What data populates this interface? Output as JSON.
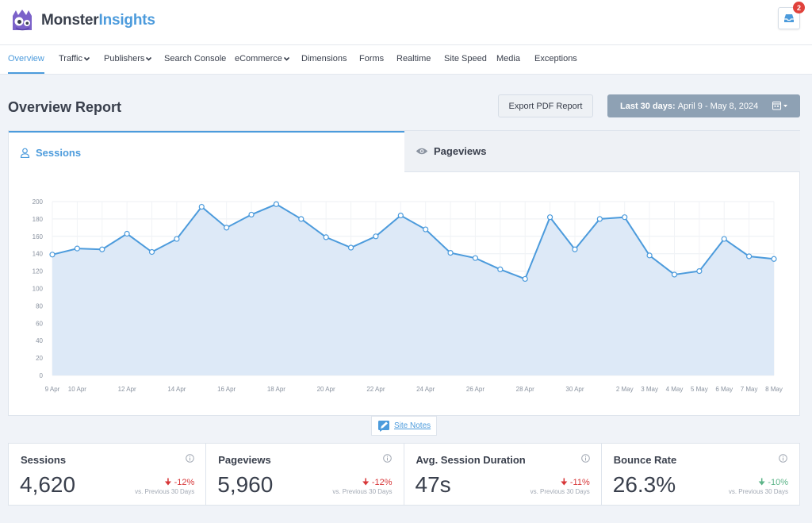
{
  "brand": {
    "name_part1": "Monster",
    "name_part2": "Insights",
    "accent": "#4c9bdc"
  },
  "header": {
    "notifications_count": "2",
    "inbox_icon": "inbox-icon"
  },
  "nav": {
    "items": [
      {
        "label": "Overview",
        "active": true,
        "dropdown": false
      },
      {
        "label": "Traffic",
        "dropdown": true
      },
      {
        "label": "Publishers",
        "dropdown": true
      },
      {
        "label": "Search Console",
        "dropdown": false
      },
      {
        "label": "eCommerce",
        "dropdown": true
      },
      {
        "label": "Dimensions",
        "dropdown": false
      },
      {
        "label": "Forms",
        "dropdown": false
      },
      {
        "label": "Realtime",
        "dropdown": false
      },
      {
        "label": "Site Speed",
        "dropdown": false
      },
      {
        "label": "Media",
        "dropdown": false
      },
      {
        "label": "Exceptions",
        "dropdown": false
      }
    ]
  },
  "page": {
    "title": "Overview Report",
    "export_label": "Export PDF Report",
    "date_range_prefix": "Last 30 days:",
    "date_range_value": "April 9 - May 8, 2024"
  },
  "tabs": {
    "sessions_label": "Sessions",
    "pageviews_label": "Pageviews"
  },
  "site_notes_label": "Site Notes",
  "chart_data": {
    "type": "area",
    "ylim": [
      0,
      200
    ],
    "yticks": [
      0,
      20,
      40,
      60,
      80,
      100,
      120,
      140,
      160,
      180,
      200
    ],
    "grid": true,
    "color": "#4c9bdc",
    "fill": "#dde9f7",
    "x": [
      "9 Apr",
      "10 Apr",
      "11 Apr",
      "12 Apr",
      "13 Apr",
      "14 Apr",
      "15 Apr",
      "16 Apr",
      "17 Apr",
      "18 Apr",
      "19 Apr",
      "20 Apr",
      "21 Apr",
      "22 Apr",
      "23 Apr",
      "24 Apr",
      "25 Apr",
      "26 Apr",
      "27 Apr",
      "28 Apr",
      "29 Apr",
      "30 Apr",
      "1 May",
      "2 May",
      "3 May",
      "4 May",
      "5 May",
      "6 May",
      "7 May",
      "8 May"
    ],
    "xtick_labels": [
      "9 Apr",
      "10 Apr",
      "",
      "12 Apr",
      "",
      "14 Apr",
      "",
      "16 Apr",
      "",
      "18 Apr",
      "",
      "20 Apr",
      "",
      "22 Apr",
      "",
      "24 Apr",
      "",
      "26 Apr",
      "",
      "28 Apr",
      "",
      "30 Apr",
      "",
      "2 May",
      "3 May",
      "4 May",
      "5 May",
      "6 May",
      "7 May",
      "8 May"
    ],
    "values": [
      139,
      146,
      145,
      163,
      142,
      157,
      194,
      170,
      185,
      197,
      180,
      159,
      147,
      160,
      184,
      168,
      141,
      135,
      122,
      111,
      182,
      145,
      180,
      182,
      138,
      116,
      120,
      157,
      137,
      134
    ]
  },
  "stats": [
    {
      "label": "Sessions",
      "value": "4,620",
      "change": "-12%",
      "trend": "down",
      "vs": "vs. Previous 30 Days"
    },
    {
      "label": "Pageviews",
      "value": "5,960",
      "change": "-12%",
      "trend": "down",
      "vs": "vs. Previous 30 Days"
    },
    {
      "label": "Avg. Session Duration",
      "value": "47s",
      "change": "-11%",
      "trend": "down",
      "vs": "vs. Previous 30 Days"
    },
    {
      "label": "Bounce Rate",
      "value": "26.3%",
      "change": "-10%",
      "trend": "good",
      "vs": "vs. Previous 30 Days"
    }
  ]
}
